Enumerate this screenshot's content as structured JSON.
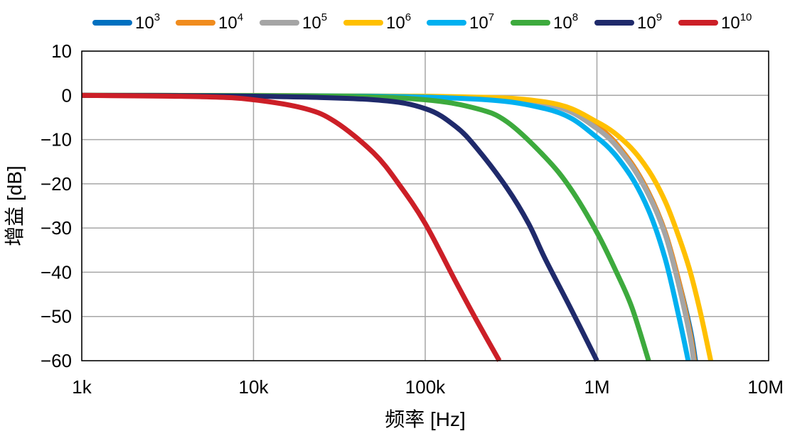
{
  "chart_data": {
    "type": "line",
    "xlabel": "频率 [Hz]",
    "ylabel": "增益 [dB]",
    "x_scale": "log",
    "xlim": [
      1000,
      10000000
    ],
    "ylim": [
      -60,
      10
    ],
    "x_ticks": [
      {
        "value": 1000,
        "label": "1k"
      },
      {
        "value": 10000,
        "label": "10k"
      },
      {
        "value": 100000,
        "label": "100k"
      },
      {
        "value": 1000000,
        "label": "1M"
      },
      {
        "value": 10000000,
        "label": "10M"
      }
    ],
    "y_ticks": [
      {
        "value": 10,
        "label": "10"
      },
      {
        "value": 0,
        "label": "0"
      },
      {
        "value": -10,
        "label": "−10"
      },
      {
        "value": -20,
        "label": "−20"
      },
      {
        "value": -30,
        "label": "−30"
      },
      {
        "value": -40,
        "label": "−40"
      },
      {
        "value": -50,
        "label": "−50"
      },
      {
        "value": -60,
        "label": "−60"
      }
    ],
    "grid": true,
    "legend_position": "top",
    "series": [
      {
        "name_base": "10",
        "name_exp": "3",
        "color": "#0070C0",
        "x": [
          1000,
          100000,
          500000,
          1000000,
          1500000,
          2000000,
          2500000,
          3000000,
          3500000,
          3750000
        ],
        "y": [
          0,
          -0.3,
          -2,
          -7,
          -14,
          -22,
          -31,
          -42,
          -53,
          -60
        ]
      },
      {
        "name_base": "10",
        "name_exp": "4",
        "color": "#F08C1E",
        "x": [
          1000,
          100000,
          500000,
          1000000,
          1500000,
          2000000,
          2500000,
          3000000,
          3500000,
          3700000
        ],
        "y": [
          0,
          -0.3,
          -2,
          -7,
          -14,
          -22,
          -31,
          -42,
          -54,
          -60
        ]
      },
      {
        "name_base": "10",
        "name_exp": "5",
        "color": "#A5A5A5",
        "x": [
          1000,
          100000,
          500000,
          1000000,
          1500000,
          2000000,
          2500000,
          3000000,
          3500000,
          3650000
        ],
        "y": [
          0,
          -0.3,
          -2,
          -7.5,
          -14.5,
          -22.5,
          -31.5,
          -43,
          -55,
          -60
        ]
      },
      {
        "name_base": "10",
        "name_exp": "6",
        "color": "#FFC000",
        "x": [
          1000,
          100000,
          500000,
          1000000,
          1500000,
          2000000,
          2500000,
          3000000,
          3500000,
          4000000,
          4600000
        ],
        "y": [
          0,
          -0.2,
          -1.5,
          -6,
          -11,
          -17,
          -24,
          -32,
          -40,
          -49,
          -60
        ]
      },
      {
        "name_base": "10",
        "name_exp": "7",
        "color": "#00B0F0",
        "x": [
          1000,
          100000,
          500000,
          1000000,
          1500000,
          2000000,
          2500000,
          3000000,
          3400000
        ],
        "y": [
          0,
          -0.4,
          -3,
          -9.5,
          -17,
          -26,
          -37,
          -50,
          -60
        ]
      },
      {
        "name_base": "10",
        "name_exp": "8",
        "color": "#3DAA3D",
        "x": [
          1000,
          30000,
          100000,
          200000,
          300000,
          500000,
          700000,
          1000000,
          1300000,
          1600000,
          2000000
        ],
        "y": [
          0,
          -0.2,
          -1,
          -3,
          -6,
          -14,
          -21,
          -31,
          -40,
          -48,
          -60
        ]
      },
      {
        "name_base": "10",
        "name_exp": "9",
        "color": "#1F2A6B",
        "x": [
          1000,
          10000,
          50000,
          100000,
          150000,
          200000,
          300000,
          400000,
          500000,
          700000,
          1000000
        ],
        "y": [
          0,
          -0.2,
          -1,
          -3,
          -7,
          -12,
          -21,
          -29,
          -37,
          -48,
          -60
        ]
      },
      {
        "name_base": "10",
        "name_exp": "10",
        "color": "#CC1F27",
        "x": [
          1000,
          5000,
          10000,
          20000,
          30000,
          50000,
          70000,
          100000,
          150000,
          200000,
          270000
        ],
        "y": [
          0,
          -0.3,
          -1,
          -3,
          -6,
          -13,
          -20,
          -29,
          -42,
          -51,
          -60
        ]
      }
    ]
  }
}
